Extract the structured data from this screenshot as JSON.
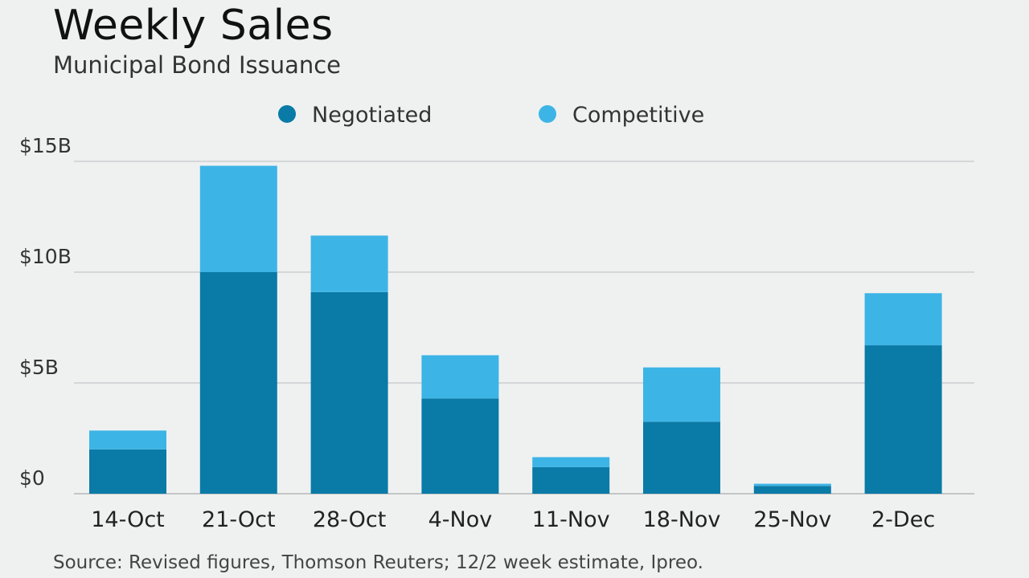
{
  "title": "Weekly Sales",
  "subtitle": "Municipal Bond Issuance",
  "source": "Source: Revised figures, Thomson Reuters; 12/2 week estimate, Ipreo.",
  "chart_data": {
    "type": "bar",
    "stacked": true,
    "categories": [
      "14-Oct",
      "21-Oct",
      "28-Oct",
      "4-Nov",
      "11-Nov",
      "18-Nov",
      "25-Nov",
      "2-Dec"
    ],
    "series": [
      {
        "name": "Negotiated",
        "color": "#0a7aa7",
        "values": [
          2.0,
          10.0,
          9.1,
          4.3,
          1.2,
          3.25,
          0.35,
          6.7
        ]
      },
      {
        "name": "Competitive",
        "color": "#3db4e6",
        "values": [
          0.85,
          4.8,
          2.55,
          1.95,
          0.45,
          2.45,
          0.1,
          2.35
        ]
      }
    ],
    "ylim": [
      0,
      15
    ],
    "yticks": [
      0,
      5,
      10,
      15
    ],
    "ytick_labels": [
      "$0",
      "$5B",
      "$10B",
      "$15B"
    ],
    "legend_position": "top-center",
    "grid": true
  }
}
